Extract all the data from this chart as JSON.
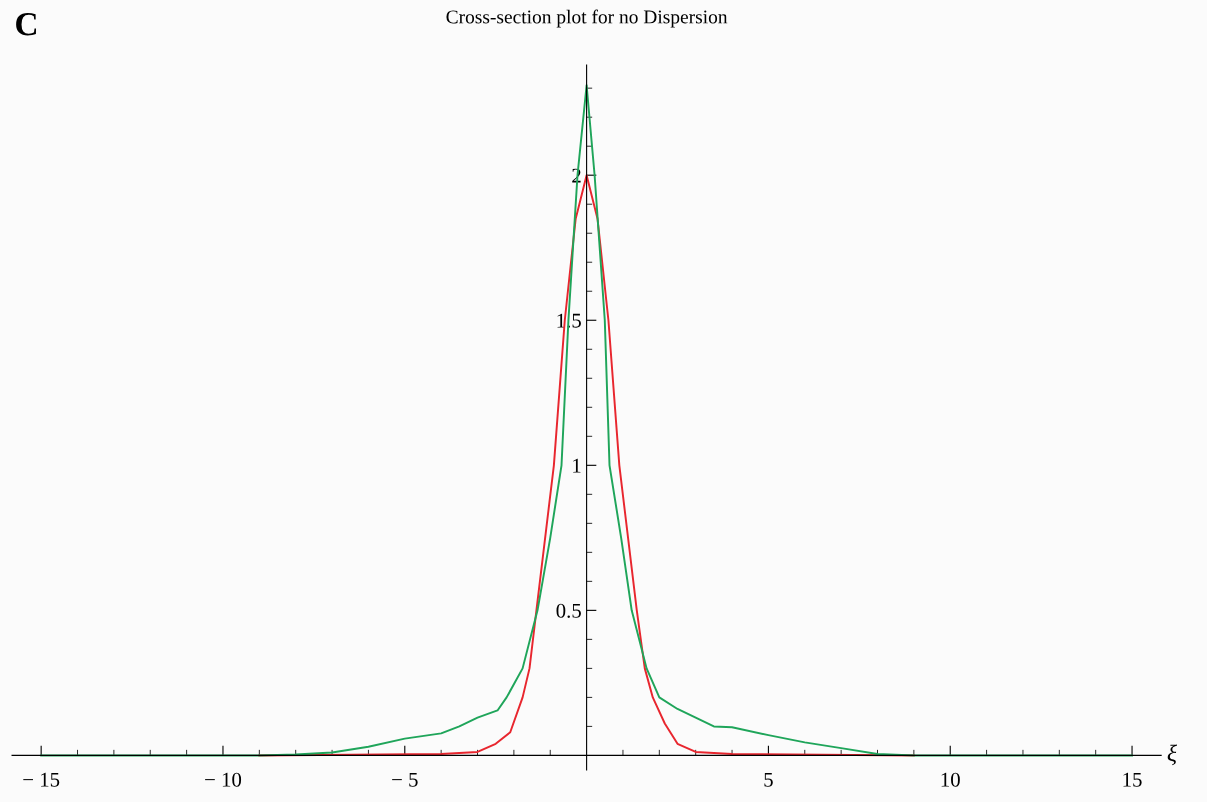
{
  "chart_data": {
    "type": "line",
    "title": "Cross-section plot for no Dispersion",
    "xlabel": "ξ",
    "annotations": [
      "C"
    ],
    "xlim": [
      -15.8,
      15.8
    ],
    "ylim": [
      -0.05,
      2.38
    ],
    "xticks": [
      -15,
      {
        "value": -14,
        "label": null
      },
      {
        "value": -13,
        "label": null
      },
      {
        "value": -12,
        "label": null
      },
      {
        "value": -11,
        "label": null
      },
      -10,
      {
        "value": -9,
        "label": null
      },
      {
        "value": -8,
        "label": null
      },
      {
        "value": -7,
        "label": null
      },
      {
        "value": -6,
        "label": null
      },
      -5,
      {
        "value": -4,
        "label": null
      },
      {
        "value": -3,
        "label": null
      },
      {
        "value": -2,
        "label": null
      },
      {
        "value": -1,
        "label": null
      },
      {
        "value": 1,
        "label": null
      },
      {
        "value": 2,
        "label": null
      },
      {
        "value": 3,
        "label": null
      },
      {
        "value": 4,
        "label": null
      },
      5,
      {
        "value": 6,
        "label": null
      },
      {
        "value": 7,
        "label": null
      },
      {
        "value": 8,
        "label": null
      },
      {
        "value": 9,
        "label": null
      },
      10,
      {
        "value": 11,
        "label": null
      },
      {
        "value": 12,
        "label": null
      },
      {
        "value": 13,
        "label": null
      },
      {
        "value": 14,
        "label": null
      },
      15
    ],
    "yticks": [
      {
        "value": 0.1,
        "label": null
      },
      {
        "value": 0.2,
        "label": null
      },
      {
        "value": 0.3,
        "label": null
      },
      {
        "value": 0.4,
        "label": null
      },
      0.5,
      {
        "value": 0.6,
        "label": null
      },
      {
        "value": 0.7,
        "label": null
      },
      {
        "value": 0.8,
        "label": null
      },
      {
        "value": 0.9,
        "label": null
      },
      1,
      {
        "value": 1.1,
        "label": null
      },
      {
        "value": 1.2,
        "label": null
      },
      {
        "value": 1.3,
        "label": null
      },
      {
        "value": 1.4,
        "label": null
      },
      1.5,
      {
        "value": 1.6,
        "label": null
      },
      {
        "value": 1.7,
        "label": null
      },
      {
        "value": 1.8,
        "label": null
      },
      {
        "value": 1.9,
        "label": null
      },
      2,
      {
        "value": 2.1,
        "label": null
      },
      {
        "value": 2.2,
        "label": null
      },
      {
        "value": 2.3,
        "label": null
      }
    ],
    "grid": false,
    "marker": "none",
    "line_style": "solid",
    "series": [
      {
        "color": "#e8262e",
        "x": [
          -9,
          -4,
          -3,
          -2.5,
          -2.1,
          -1.76,
          -1.57,
          -1.38,
          -0.9,
          -0.6,
          -0.3,
          0,
          0.3,
          0.6,
          0.9,
          1.38,
          1.6,
          1.82,
          2.15,
          2.5,
          3,
          4,
          9
        ],
        "values": [
          0,
          0.005,
          0.012,
          0.04,
          0.08,
          0.2,
          0.3,
          0.5,
          1.0,
          1.5,
          1.85,
          2.0,
          1.85,
          1.5,
          1.0,
          0.5,
          0.3,
          0.2,
          0.11,
          0.04,
          0.012,
          0.005,
          0
        ]
      },
      {
        "color": "#1fa55a",
        "x": [
          -15,
          -9,
          -8,
          -7,
          -6,
          -5,
          -4,
          -3.5,
          -3,
          -2.45,
          -2.2,
          -1.76,
          -1.35,
          -1.0,
          -0.69,
          -0.5,
          -0.25,
          0,
          0.22,
          0.5,
          0.63,
          0.95,
          1.24,
          1.65,
          2.0,
          2.5,
          3,
          3.5,
          4,
          5,
          6,
          7,
          8,
          9,
          15
        ],
        "values": [
          0,
          0,
          0.003,
          0.01,
          0.03,
          0.058,
          0.076,
          0.1,
          0.13,
          0.155,
          0.2,
          0.3,
          0.5,
          0.75,
          1.0,
          1.5,
          2.0,
          2.31,
          2.0,
          1.5,
          1.0,
          0.75,
          0.5,
          0.3,
          0.2,
          0.16,
          0.13,
          0.1,
          0.097,
          0.07,
          0.045,
          0.025,
          0.005,
          0,
          0
        ]
      }
    ]
  }
}
